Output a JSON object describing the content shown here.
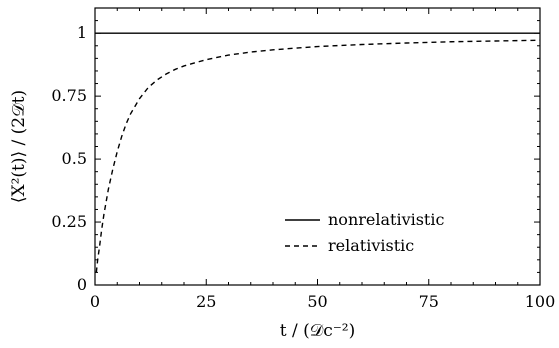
{
  "chart_data": {
    "type": "line",
    "title": "",
    "xlabel": "t / (𝒟c⁻²)",
    "ylabel": "⟨X²(t)⟩ / (2𝒟t)",
    "xlim": [
      0,
      100
    ],
    "ylim": [
      0,
      1.1
    ],
    "xticks": [
      0,
      25,
      50,
      75,
      100
    ],
    "yticks": [
      0,
      0.25,
      0.5,
      0.75,
      1
    ],
    "xtick_labels": [
      "0",
      "25",
      "50",
      "75",
      "100"
    ],
    "ytick_labels": [
      "0",
      "0.25",
      "0.5",
      "0.75",
      "1"
    ],
    "grid": false,
    "legend_position": "lower-right",
    "series": [
      {
        "name": "nonrelativistic",
        "style": "solid",
        "x": [
          0,
          100
        ],
        "y": [
          1.0,
          1.0
        ]
      },
      {
        "name": "relativistic",
        "style": "dashed",
        "x": [
          0.3,
          0.6,
          1,
          1.5,
          2,
          3,
          4,
          5,
          6,
          7,
          8,
          9,
          10,
          12,
          14,
          16,
          18,
          20,
          25,
          30,
          35,
          40,
          50,
          60,
          70,
          80,
          90,
          100
        ],
        "y": [
          0.05,
          0.1,
          0.15,
          0.22,
          0.28,
          0.38,
          0.46,
          0.53,
          0.59,
          0.64,
          0.68,
          0.71,
          0.74,
          0.785,
          0.815,
          0.838,
          0.856,
          0.87,
          0.895,
          0.913,
          0.925,
          0.934,
          0.947,
          0.955,
          0.961,
          0.966,
          0.969,
          0.972
        ]
      }
    ]
  }
}
